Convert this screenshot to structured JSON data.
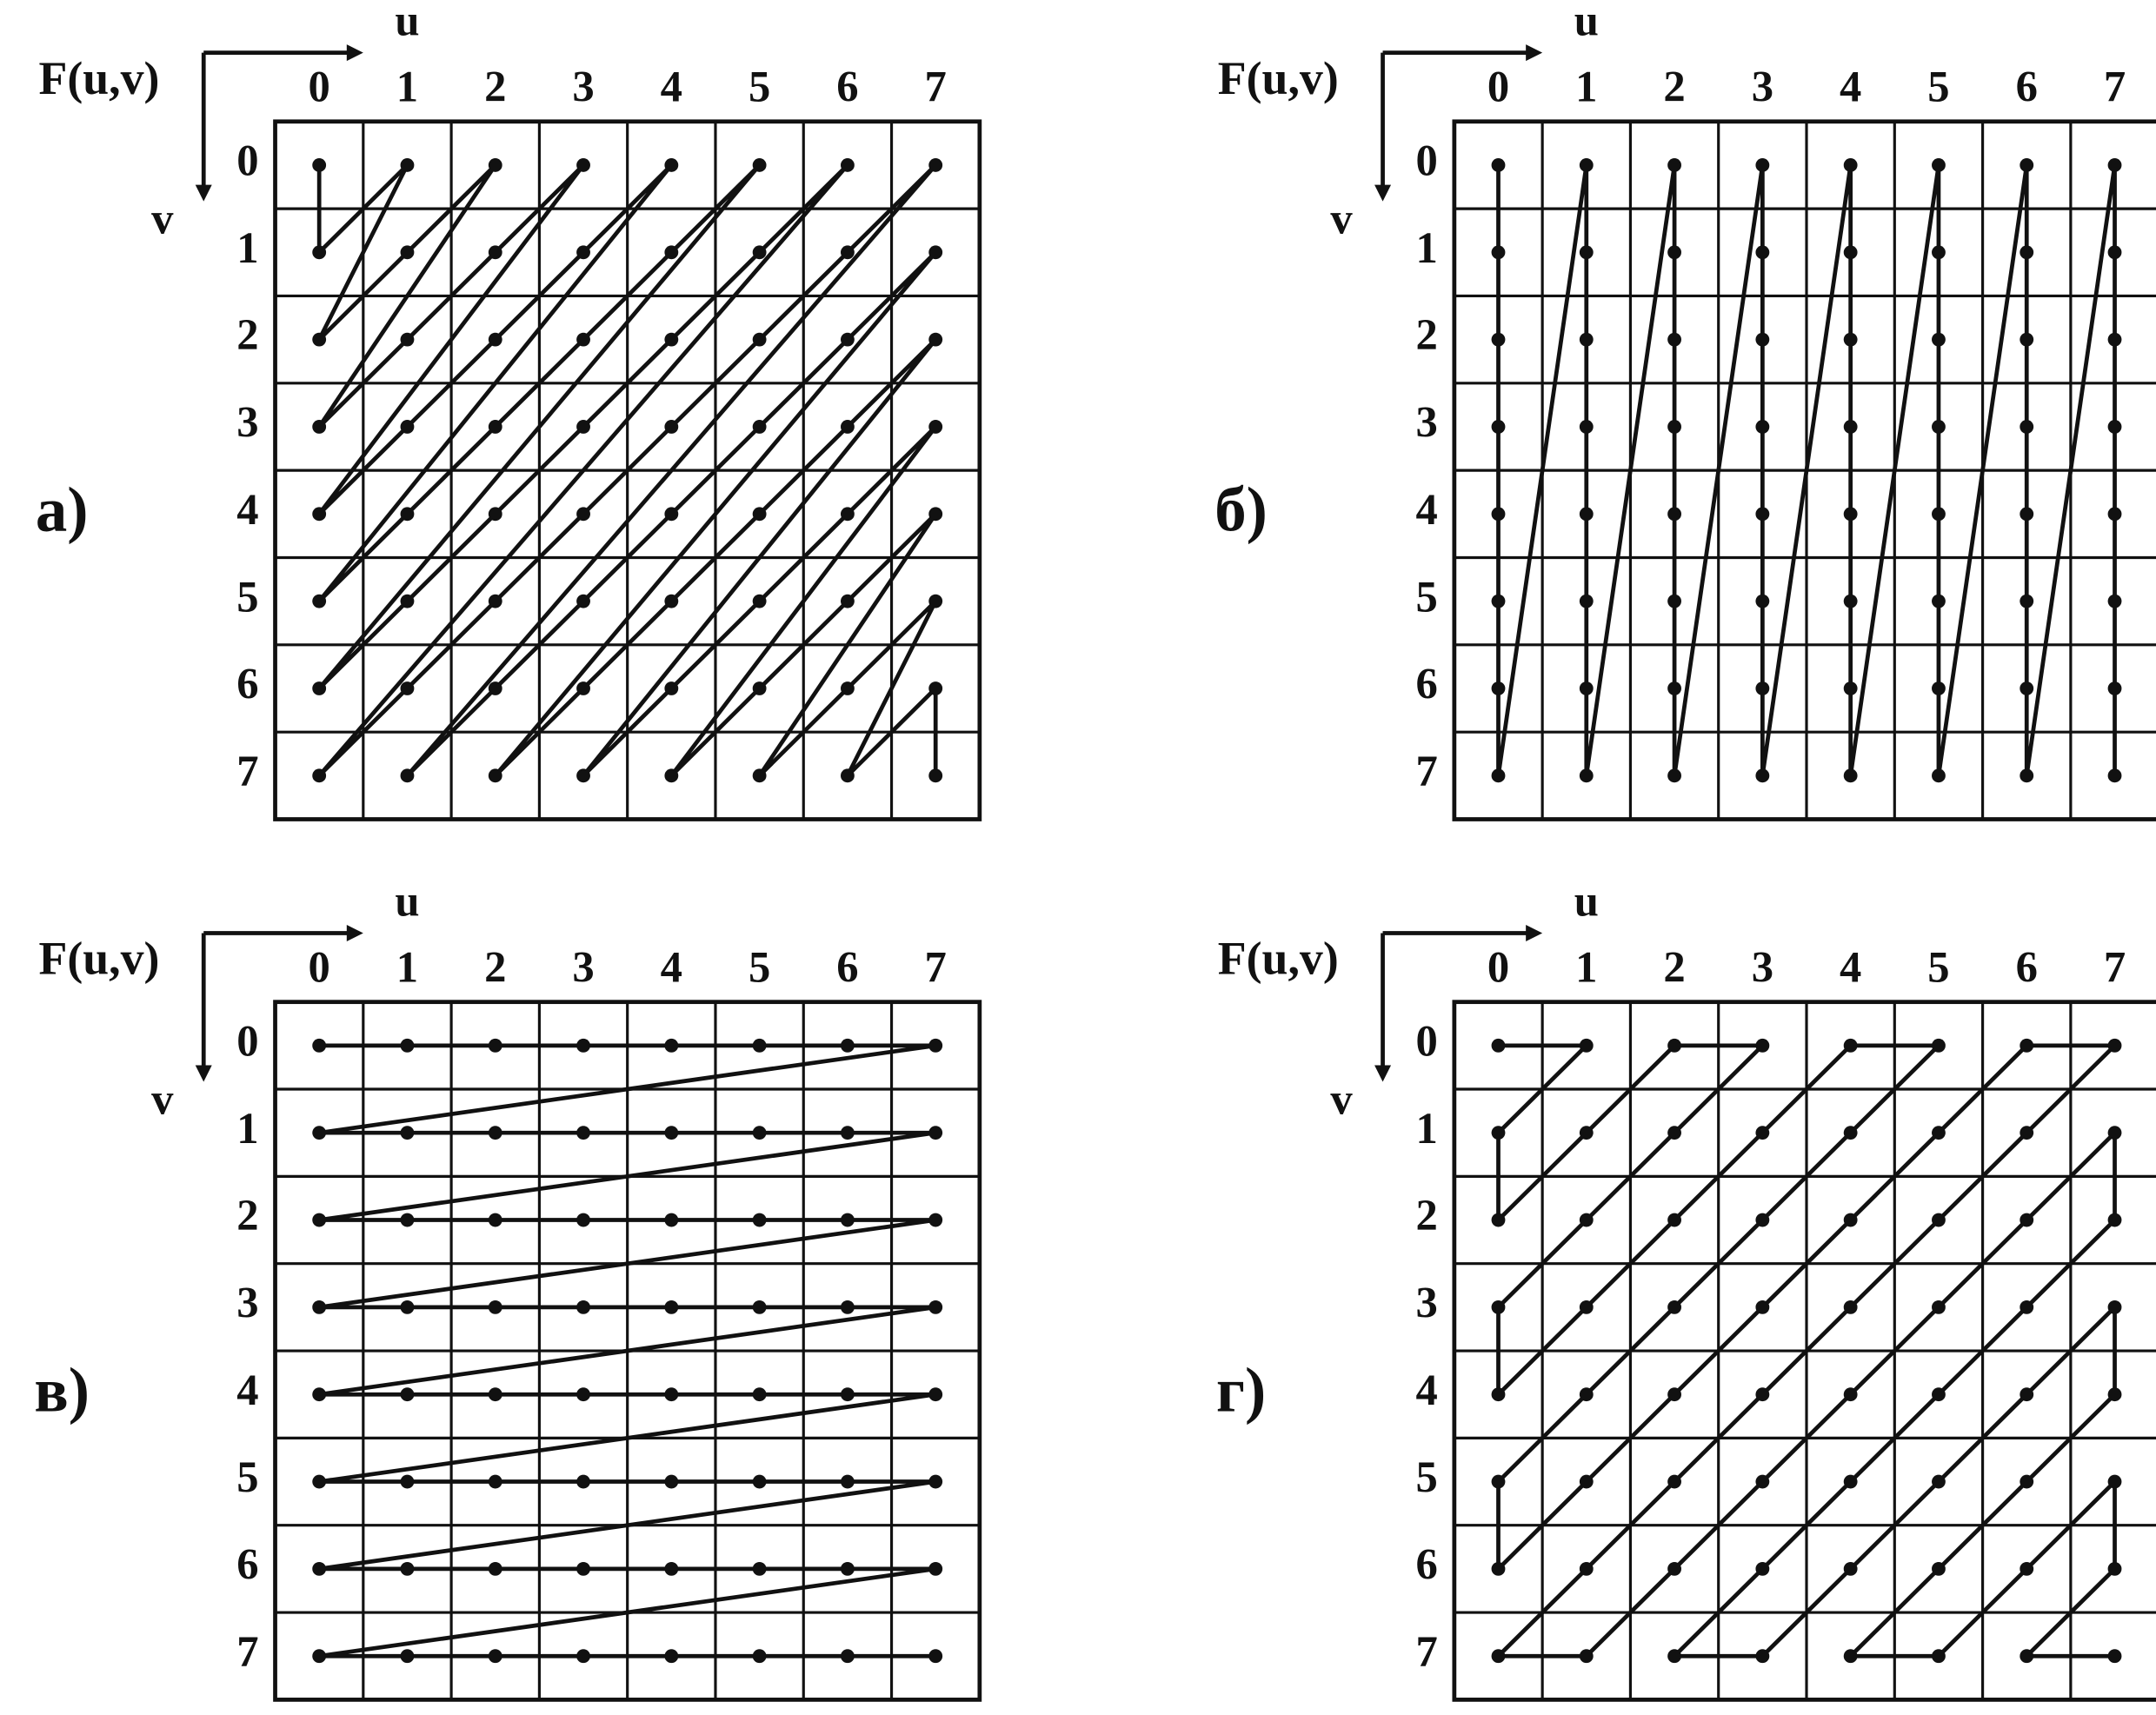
{
  "panels": [
    {
      "label": "а)",
      "function": "F(u,v)",
      "u_label": "u",
      "v_label": "v",
      "columns": [
        "0",
        "1",
        "2",
        "3",
        "4",
        "5",
        "6",
        "7"
      ],
      "rows": [
        "0",
        "1",
        "2",
        "3",
        "4",
        "5",
        "6",
        "7"
      ]
    },
    {
      "label": "б)",
      "function": "F(u,v)",
      "u_label": "u",
      "v_label": "v",
      "columns": [
        "0",
        "1",
        "2",
        "3",
        "4",
        "5",
        "6",
        "7"
      ],
      "rows": [
        "0",
        "1",
        "2",
        "3",
        "4",
        "5",
        "6",
        "7"
      ]
    },
    {
      "label": "в)",
      "function": "F(u,v)",
      "u_label": "u",
      "v_label": "v",
      "columns": [
        "0",
        "1",
        "2",
        "3",
        "4",
        "5",
        "6",
        "7"
      ],
      "rows": [
        "0",
        "1",
        "2",
        "3",
        "4",
        "5",
        "6",
        "7"
      ]
    },
    {
      "label": "г)",
      "function": "F(u,v)",
      "u_label": "u",
      "v_label": "v",
      "columns": [
        "0",
        "1",
        "2",
        "3",
        "4",
        "5",
        "6",
        "7"
      ],
      "rows": [
        "0",
        "1",
        "2",
        "3",
        "4",
        "5",
        "6",
        "7"
      ]
    }
  ]
}
